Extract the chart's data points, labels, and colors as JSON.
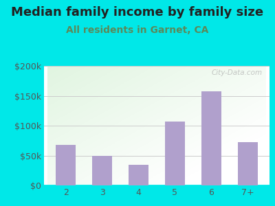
{
  "title": "Median family income by family size",
  "subtitle": "All residents in Garnet, CA",
  "categories": [
    "2",
    "3",
    "4",
    "5",
    "6",
    "7+"
  ],
  "values": [
    68000,
    50000,
    35000,
    107000,
    158000,
    72000
  ],
  "bar_color": "#b0a0cc",
  "background_outer": "#00e8e8",
  "title_color": "#222222",
  "subtitle_color": "#5a8a5a",
  "tick_color": "#555555",
  "grid_color": "#cccccc",
  "ylim": [
    0,
    200000
  ],
  "yticks": [
    0,
    50000,
    100000,
    150000,
    200000
  ],
  "ytick_labels": [
    "$0",
    "$50k",
    "$100k",
    "$150k",
    "$200k"
  ],
  "watermark": "City-Data.com",
  "title_fontsize": 13,
  "subtitle_fontsize": 10,
  "tick_fontsize": 9
}
